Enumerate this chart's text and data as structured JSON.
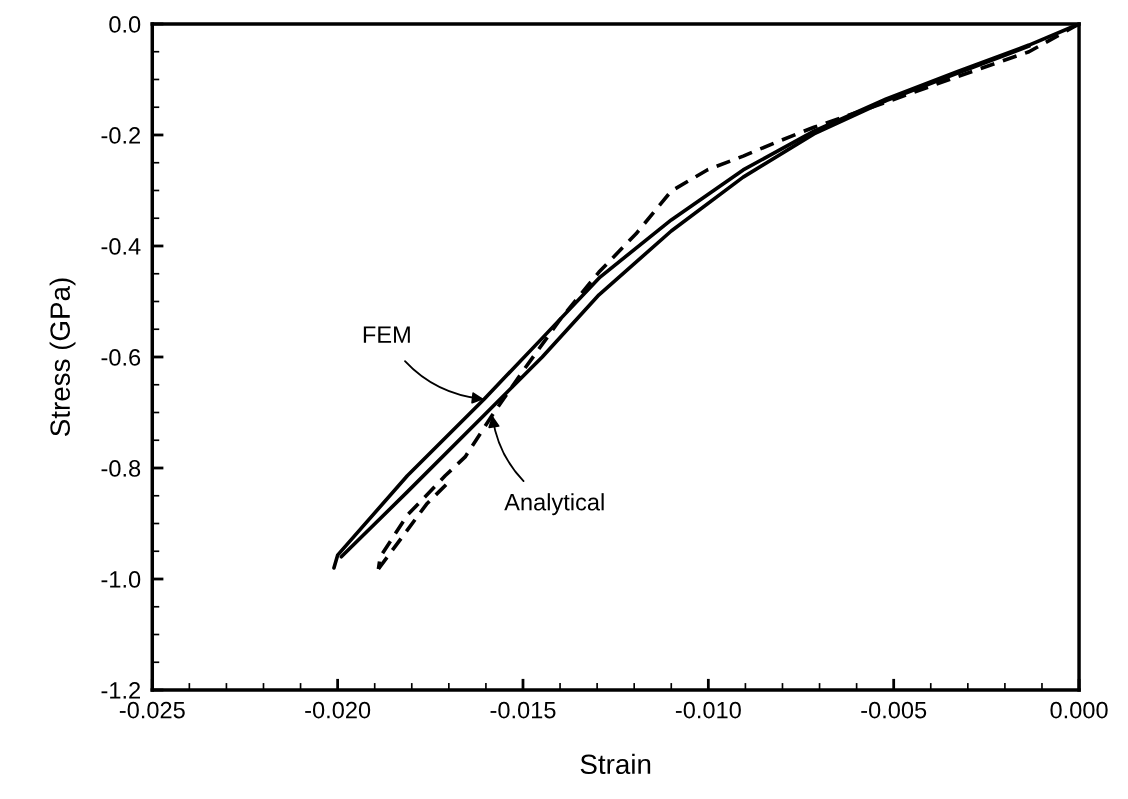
{
  "chart_data": {
    "type": "line",
    "xlabel": "Strain",
    "ylabel": "Stress (GPa)",
    "xlim": [
      -0.025,
      0.0
    ],
    "ylim": [
      -1.2,
      0.0
    ],
    "xticks": [
      {
        "value": -0.025,
        "label": "-0.025"
      },
      {
        "value": -0.024,
        "label": null
      },
      {
        "value": -0.023,
        "label": null
      },
      {
        "value": -0.022,
        "label": null
      },
      {
        "value": -0.021,
        "label": null
      },
      {
        "value": -0.02,
        "label": "-0.020"
      },
      {
        "value": -0.019,
        "label": null
      },
      {
        "value": -0.018,
        "label": null
      },
      {
        "value": -0.017,
        "label": null
      },
      {
        "value": -0.016,
        "label": null
      },
      {
        "value": -0.015,
        "label": "-0.015"
      },
      {
        "value": -0.014,
        "label": null
      },
      {
        "value": -0.013,
        "label": null
      },
      {
        "value": -0.012,
        "label": null
      },
      {
        "value": -0.011,
        "label": null
      },
      {
        "value": -0.01,
        "label": "-0.010"
      },
      {
        "value": -0.009,
        "label": null
      },
      {
        "value": -0.008,
        "label": null
      },
      {
        "value": -0.007,
        "label": null
      },
      {
        "value": -0.006,
        "label": null
      },
      {
        "value": -0.005,
        "label": "-0.005"
      },
      {
        "value": -0.004,
        "label": null
      },
      {
        "value": -0.003,
        "label": null
      },
      {
        "value": -0.002,
        "label": null
      },
      {
        "value": -0.001,
        "label": null
      },
      {
        "value": 0.0,
        "label": "0.000"
      }
    ],
    "yticks": [
      {
        "value": -1.2,
        "label": "-1.2"
      },
      {
        "value": -1.15,
        "label": null
      },
      {
        "value": -1.1,
        "label": null
      },
      {
        "value": -1.05,
        "label": null
      },
      {
        "value": -1.0,
        "label": "-1.0"
      },
      {
        "value": -0.95,
        "label": null
      },
      {
        "value": -0.9,
        "label": null
      },
      {
        "value": -0.85,
        "label": null
      },
      {
        "value": -0.8,
        "label": "-0.8"
      },
      {
        "value": -0.75,
        "label": null
      },
      {
        "value": -0.7,
        "label": null
      },
      {
        "value": -0.65,
        "label": null
      },
      {
        "value": -0.6,
        "label": "-0.6"
      },
      {
        "value": -0.55,
        "label": null
      },
      {
        "value": -0.5,
        "label": null
      },
      {
        "value": -0.45,
        "label": null
      },
      {
        "value": -0.4,
        "label": "-0.4"
      },
      {
        "value": -0.35,
        "label": null
      },
      {
        "value": -0.3,
        "label": null
      },
      {
        "value": -0.25,
        "label": null
      },
      {
        "value": -0.2,
        "label": "-0.2"
      },
      {
        "value": -0.15,
        "label": null
      },
      {
        "value": -0.1,
        "label": null
      },
      {
        "value": -0.05,
        "label": null
      },
      {
        "value": 0.0,
        "label": "0.0"
      }
    ],
    "grid": false,
    "legend": false,
    "marker": "none",
    "series": [
      {
        "color": "#000000",
        "line_style": "solid",
        "x": [
          0.0,
          -0.00135,
          -0.00329,
          -0.0052,
          -0.00715,
          -0.00906,
          -0.011,
          -0.01292,
          -0.01448,
          -0.01605,
          -0.01812,
          -0.02,
          -0.0201
        ],
        "values": [
          0.0,
          -0.038,
          -0.086,
          -0.135,
          -0.193,
          -0.263,
          -0.353,
          -0.456,
          -0.566,
          -0.676,
          -0.814,
          -0.957,
          -0.98
        ]
      },
      {
        "color": "#000000",
        "line_style": "solid",
        "x": [
          -0.0199,
          -0.01812,
          -0.01605,
          -0.01448,
          -0.01295,
          -0.011,
          -0.00906,
          -0.00715,
          -0.0052,
          -0.00329,
          -0.00135
        ],
        "values": [
          -0.96,
          -0.843,
          -0.705,
          -0.6,
          -0.488,
          -0.373,
          -0.276,
          -0.198,
          -0.138,
          -0.089,
          -0.04
        ]
      },
      {
        "color": "#000000",
        "line_style": "dashed",
        "x": [
          0.0,
          -0.00135,
          -0.00329,
          -0.0052,
          -0.00715,
          -0.00809,
          -0.00906,
          -0.01003,
          -0.011,
          -0.01195,
          -0.01295,
          -0.01397,
          -0.01502,
          -0.01583,
          -0.01656,
          -0.0171,
          -0.01812,
          -0.01885,
          -0.0189
        ],
        "values": [
          0.0,
          -0.05,
          -0.095,
          -0.141,
          -0.186,
          -0.211,
          -0.238,
          -0.263,
          -0.301,
          -0.378,
          -0.447,
          -0.53,
          -0.627,
          -0.705,
          -0.78,
          -0.814,
          -0.885,
          -0.96,
          -0.982
        ]
      },
      {
        "color": "#000000",
        "line_style": "dashed",
        "x": [
          -0.0189,
          -0.0186,
          -0.0176,
          -0.017
        ],
        "values": [
          -0.982,
          -0.955,
          -0.865,
          -0.825
        ]
      }
    ],
    "annotations": [
      {
        "text": "FEM",
        "x": -0.01605,
        "y": -0.676
      },
      {
        "text": "Analytical",
        "x": -0.01583,
        "y": -0.705
      }
    ]
  }
}
